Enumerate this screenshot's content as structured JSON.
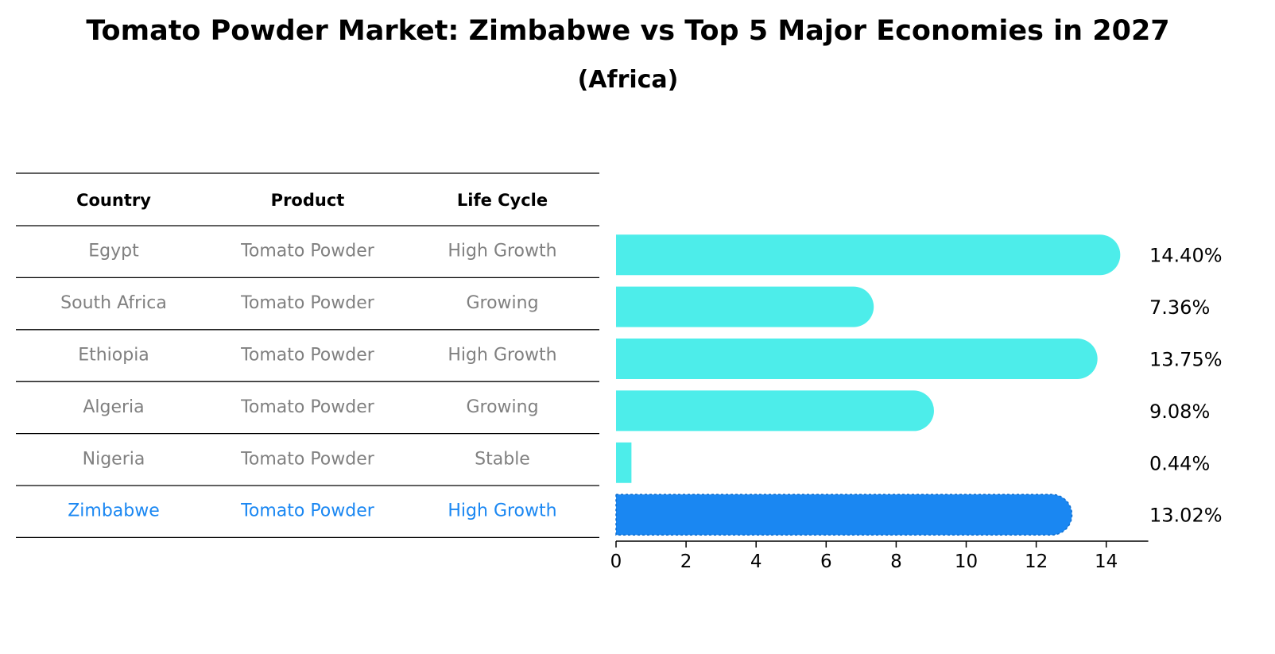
{
  "title": "Tomato Powder Market: Zimbabwe vs Top 5 Major Economies in 2027",
  "subtitle": "(Africa)",
  "table": {
    "headers": [
      "Country",
      "Product",
      "Life Cycle"
    ],
    "rows": [
      {
        "country": "Egypt",
        "product": "Tomato Powder",
        "life_cycle": "High Growth",
        "highlight": false
      },
      {
        "country": "South Africa",
        "product": "Tomato Powder",
        "life_cycle": "Growing",
        "highlight": false
      },
      {
        "country": "Ethiopia",
        "product": "Tomato Powder",
        "life_cycle": "High Growth",
        "highlight": false
      },
      {
        "country": "Algeria",
        "product": "Tomato Powder",
        "life_cycle": "Growing",
        "highlight": false
      },
      {
        "country": "Nigeria",
        "product": "Tomato Powder",
        "life_cycle": "Stable",
        "highlight": false
      },
      {
        "country": "Zimbabwe",
        "product": "Tomato Powder",
        "life_cycle": "High Growth",
        "highlight": true
      }
    ]
  },
  "colors": {
    "bar": "#4DEDEA",
    "highlight_bar": "#1A87F2",
    "row_text": "#808080",
    "highlight_text": "#1A87F2",
    "rule": "#000000"
  },
  "chart_data": {
    "type": "bar",
    "orientation": "horizontal",
    "categories": [
      "Egypt",
      "South Africa",
      "Ethiopia",
      "Algeria",
      "Nigeria",
      "Zimbabwe"
    ],
    "values": [
      14.4,
      7.36,
      13.75,
      9.08,
      0.44,
      13.02
    ],
    "value_labels": [
      "14.40%",
      "7.36%",
      "13.75%",
      "9.08%",
      "0.44%",
      "13.02%"
    ],
    "xticks": [
      0,
      2,
      4,
      6,
      8,
      10,
      12,
      14
    ],
    "xlim": [
      0,
      15.2
    ],
    "grid": false,
    "highlight_category": "Zimbabwe"
  }
}
